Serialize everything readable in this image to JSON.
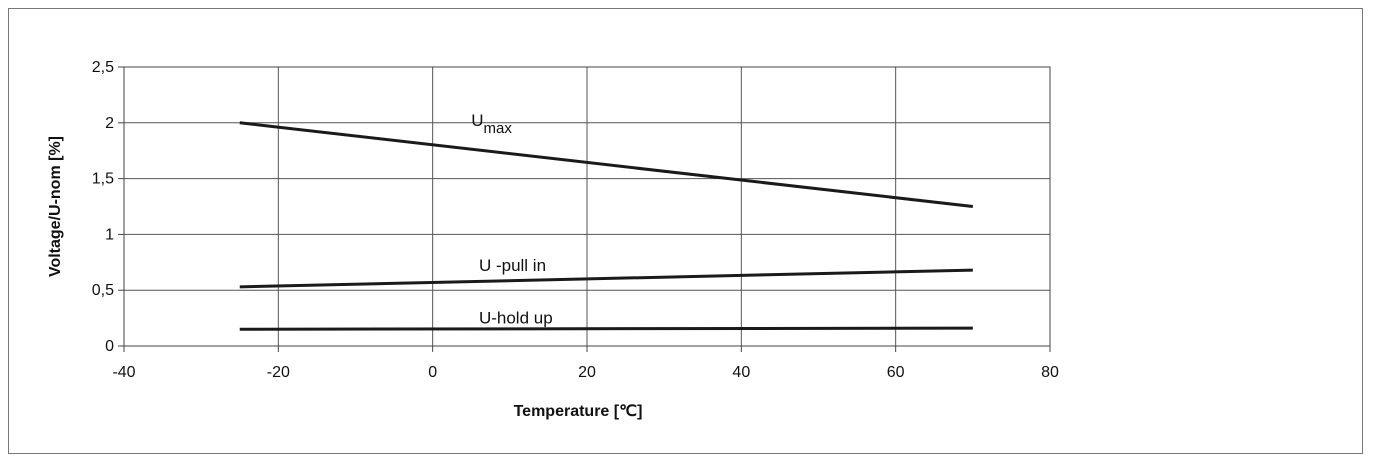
{
  "chart_data": {
    "type": "line",
    "xlabel": "Temperature [℃]",
    "ylabel": "Voltage/U-nom [%]",
    "xlim": [
      -40,
      80
    ],
    "ylim": [
      0,
      2.5
    ],
    "x_ticks": [
      "-40",
      "-20",
      "0",
      "20",
      "40",
      "60",
      "80"
    ],
    "y_ticks": [
      "0",
      "0,5",
      "1",
      "1,5",
      "2",
      "2,5"
    ],
    "grid": true,
    "legend": "none",
    "line_color": "#1a1a1a",
    "series": [
      {
        "name": "Umax",
        "label_main": "U",
        "label_sub": "max",
        "x": [
          -25,
          70
        ],
        "y": [
          2.0,
          1.25
        ]
      },
      {
        "name": "U -pull in",
        "x": [
          -25,
          70
        ],
        "y": [
          0.53,
          0.68
        ]
      },
      {
        "name": "U-hold up",
        "x": [
          -25,
          70
        ],
        "y": [
          0.15,
          0.16
        ]
      }
    ]
  }
}
